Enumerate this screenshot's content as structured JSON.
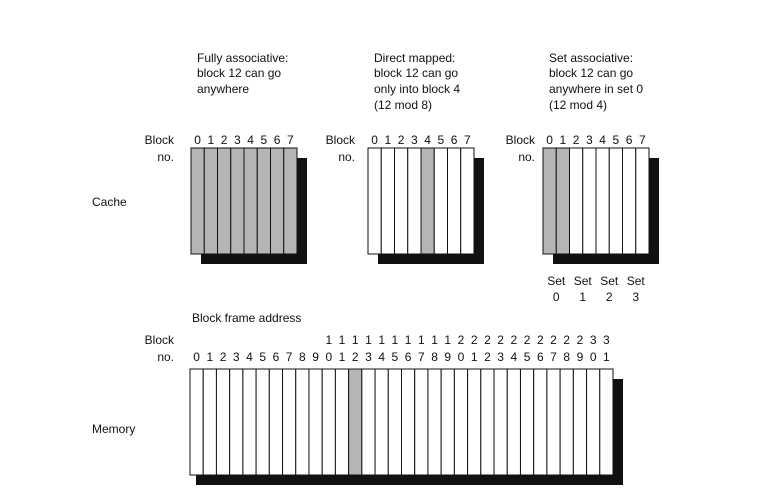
{
  "panels": {
    "fully": {
      "caption": [
        "Fully associative:",
        "block 12 can go",
        "anywhere"
      ],
      "row_label": [
        "Block",
        "no."
      ],
      "blocks": [
        "0",
        "1",
        "2",
        "3",
        "4",
        "5",
        "6",
        "7"
      ],
      "shaded": [
        0,
        1,
        2,
        3,
        4,
        5,
        6,
        7
      ]
    },
    "direct": {
      "caption": [
        "Direct mapped:",
        "block 12 can go",
        "only into block 4",
        "(12 mod 8)"
      ],
      "row_label": [
        "Block",
        "no."
      ],
      "blocks": [
        "0",
        "1",
        "2",
        "3",
        "4",
        "5",
        "6",
        "7"
      ],
      "shaded": [
        4
      ]
    },
    "set": {
      "caption": [
        "Set associative:",
        "block 12 can go",
        "anywhere in set 0",
        "(12 mod 4)"
      ],
      "row_label": [
        "Block",
        "no."
      ],
      "blocks": [
        "0",
        "1",
        "2",
        "3",
        "4",
        "5",
        "6",
        "7"
      ],
      "shaded": [
        0,
        1
      ],
      "sets": [
        {
          "label": "Set",
          "num": "0"
        },
        {
          "label": "Set",
          "num": "1"
        },
        {
          "label": "Set",
          "num": "2"
        },
        {
          "label": "Set",
          "num": "3"
        }
      ]
    }
  },
  "cache_label": "Cache",
  "memory": {
    "label": "Memory",
    "title": "Block frame address",
    "row_label": [
      "Block",
      "no."
    ],
    "tens": [
      "",
      "",
      "",
      "",
      "",
      "",
      "",
      "",
      "",
      "",
      "1",
      "1",
      "1",
      "1",
      "1",
      "1",
      "1",
      "1",
      "1",
      "1",
      "2",
      "2",
      "2",
      "2",
      "2",
      "2",
      "2",
      "2",
      "2",
      "2",
      "3",
      "3"
    ],
    "units": [
      "0",
      "1",
      "2",
      "3",
      "4",
      "5",
      "6",
      "7",
      "8",
      "9",
      "0",
      "1",
      "2",
      "3",
      "4",
      "5",
      "6",
      "7",
      "8",
      "9",
      "0",
      "1",
      "2",
      "3",
      "4",
      "5",
      "6",
      "7",
      "8",
      "9",
      "0",
      "1"
    ],
    "shaded": [
      12
    ]
  },
  "colors": {
    "shade": "#b5b5b5",
    "line": "#111111",
    "fill": "#ffffff"
  }
}
